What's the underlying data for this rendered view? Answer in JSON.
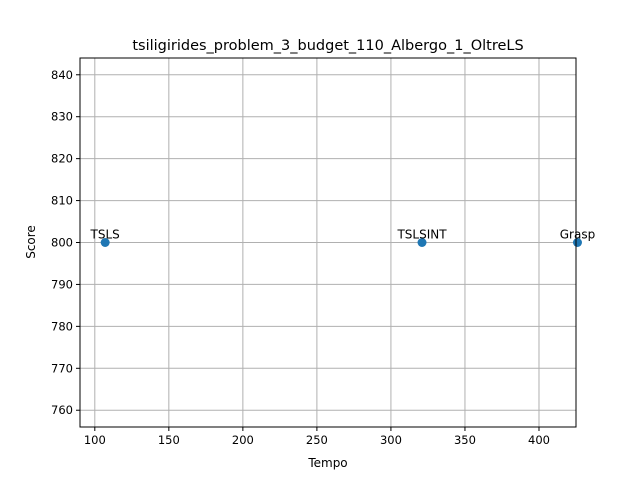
{
  "chart_data": {
    "type": "scatter",
    "title": "tsiligirides_problem_3_budget_110_Albergo_1_OltreLS",
    "xlabel": "Tempo",
    "ylabel": "Score",
    "xlim": [
      90,
      425
    ],
    "ylim": [
      756,
      844
    ],
    "xticks": [
      100,
      150,
      200,
      250,
      300,
      350,
      400
    ],
    "yticks": [
      760,
      770,
      780,
      790,
      800,
      810,
      820,
      830,
      840
    ],
    "grid": true,
    "color": "#1f77b4",
    "points": [
      {
        "label": "TSLS",
        "x": 107,
        "y": 800
      },
      {
        "label": "TSLSINT",
        "x": 321,
        "y": 800
      },
      {
        "label": "Grasp",
        "x": 426,
        "y": 800
      }
    ]
  }
}
